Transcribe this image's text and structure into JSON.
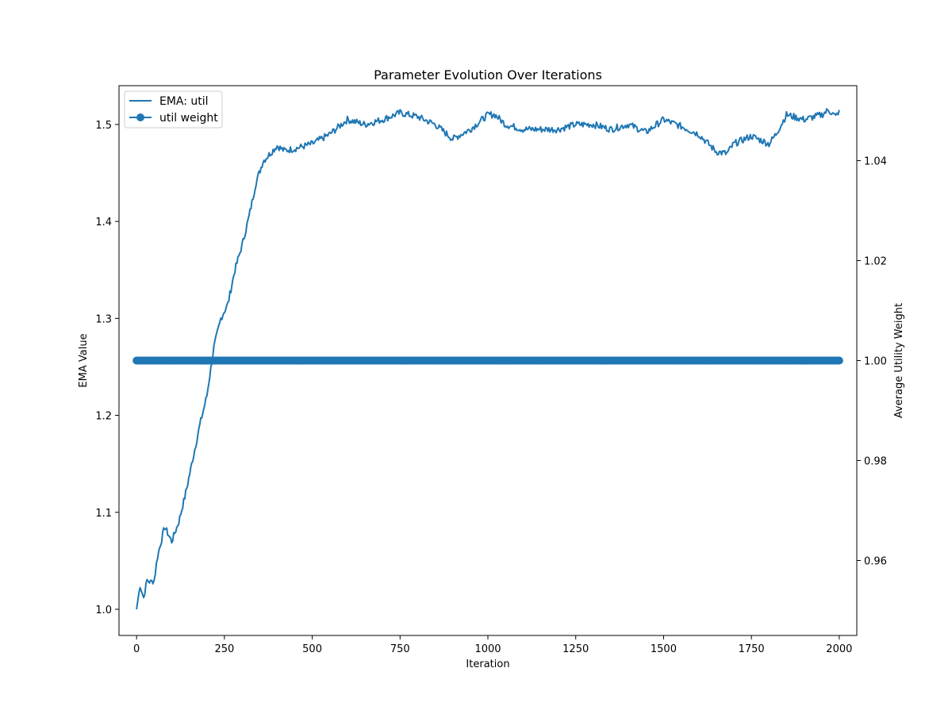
{
  "chart_data": {
    "type": "line",
    "title": "Parameter Evolution Over Iterations",
    "xlabel": "Iteration",
    "ylabel_left": "EMA Value",
    "ylabel_right": "Average Utility Weight",
    "xlim": [
      -50,
      2050
    ],
    "ylim_left": [
      0.973,
      1.54
    ],
    "ylim_right": [
      0.945,
      1.055
    ],
    "x_ticks": [
      0,
      250,
      500,
      750,
      1000,
      1250,
      1500,
      1750,
      2000
    ],
    "y_ticks_left": [
      1.0,
      1.1,
      1.2,
      1.3,
      1.4,
      1.5
    ],
    "y_ticks_right": [
      0.96,
      0.98,
      1.0,
      1.02,
      1.04
    ],
    "grid": false,
    "legend_position": "top-left",
    "accent_color": "#1f77b4",
    "series": [
      {
        "name": "EMA: util",
        "axis": "left",
        "marker": "none",
        "x": [
          0,
          10,
          20,
          30,
          40,
          50,
          60,
          80,
          100,
          120,
          140,
          160,
          180,
          200,
          220,
          240,
          260,
          280,
          300,
          320,
          340,
          360,
          380,
          400,
          420,
          450,
          500,
          550,
          600,
          650,
          700,
          750,
          800,
          850,
          900,
          950,
          1000,
          1020,
          1050,
          1100,
          1150,
          1200,
          1250,
          1300,
          1350,
          1400,
          1450,
          1500,
          1550,
          1600,
          1650,
          1680,
          1700,
          1750,
          1800,
          1820,
          1850,
          1900,
          1950,
          1970,
          1990,
          2000
        ],
        "y": [
          1.0,
          1.025,
          1.012,
          1.03,
          1.028,
          1.03,
          1.055,
          1.085,
          1.07,
          1.09,
          1.12,
          1.155,
          1.19,
          1.22,
          1.27,
          1.3,
          1.315,
          1.35,
          1.375,
          1.405,
          1.44,
          1.462,
          1.47,
          1.478,
          1.473,
          1.475,
          1.48,
          1.49,
          1.505,
          1.5,
          1.505,
          1.512,
          1.508,
          1.5,
          1.485,
          1.495,
          1.51,
          1.51,
          1.5,
          1.495,
          1.495,
          1.495,
          1.5,
          1.5,
          1.495,
          1.5,
          1.492,
          1.505,
          1.498,
          1.49,
          1.472,
          1.47,
          1.48,
          1.488,
          1.48,
          1.49,
          1.51,
          1.505,
          1.51,
          1.515,
          1.508,
          1.515
        ]
      },
      {
        "name": "util weight",
        "axis": "right",
        "marker": "circle",
        "x_range": [
          0,
          2000
        ],
        "y_constant": 1.0
      }
    ]
  }
}
